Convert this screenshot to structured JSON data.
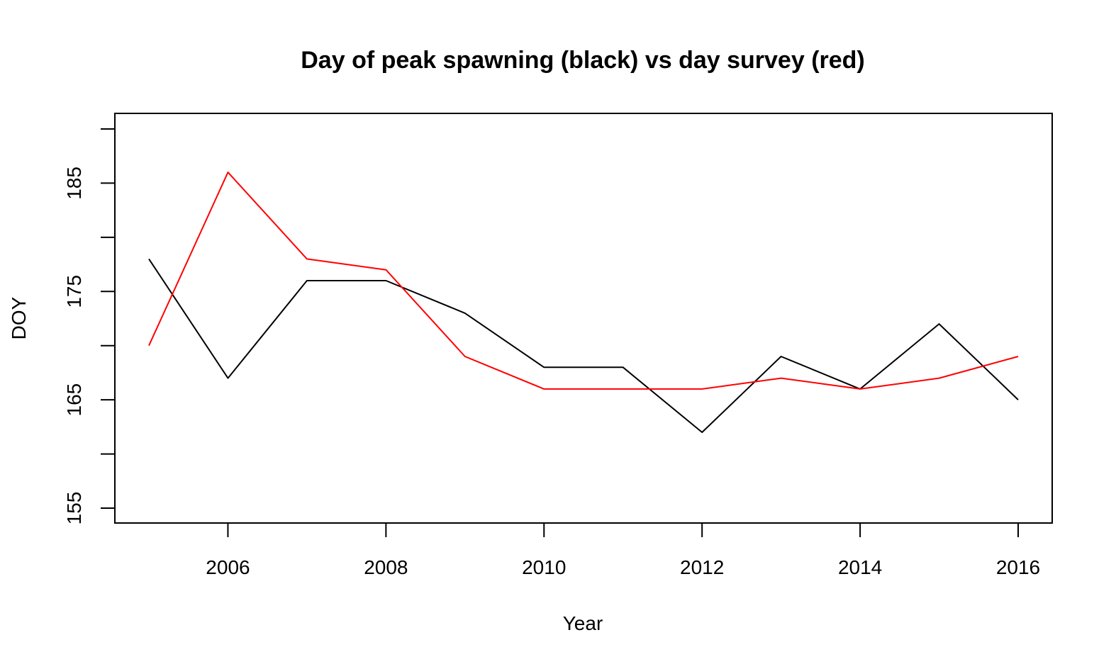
{
  "chart_data": {
    "type": "line",
    "title": "Day of peak spawning (black) vs day survey (red)",
    "xlabel": "Year",
    "ylabel": "DOY",
    "xlim": [
      2005,
      2016
    ],
    "ylim": [
      155,
      190
    ],
    "xticks": [
      2006,
      2008,
      2010,
      2012,
      2014,
      2016
    ],
    "yticks": [
      155,
      160,
      165,
      170,
      175,
      180,
      185,
      190
    ],
    "ytick_labels": [
      155,
      165,
      175,
      185
    ],
    "grid": false,
    "x": [
      2005,
      2006,
      2007,
      2008,
      2009,
      2010,
      2011,
      2012,
      2013,
      2014,
      2015,
      2016
    ],
    "series": [
      {
        "color": "#000000",
        "values": [
          178,
          167,
          176,
          176,
          173,
          168,
          168,
          162,
          169,
          166,
          172,
          165
        ]
      },
      {
        "color": "#ff0000",
        "values": [
          170,
          186,
          178,
          177,
          169,
          166,
          166,
          166,
          167,
          166,
          167,
          169
        ]
      }
    ]
  }
}
